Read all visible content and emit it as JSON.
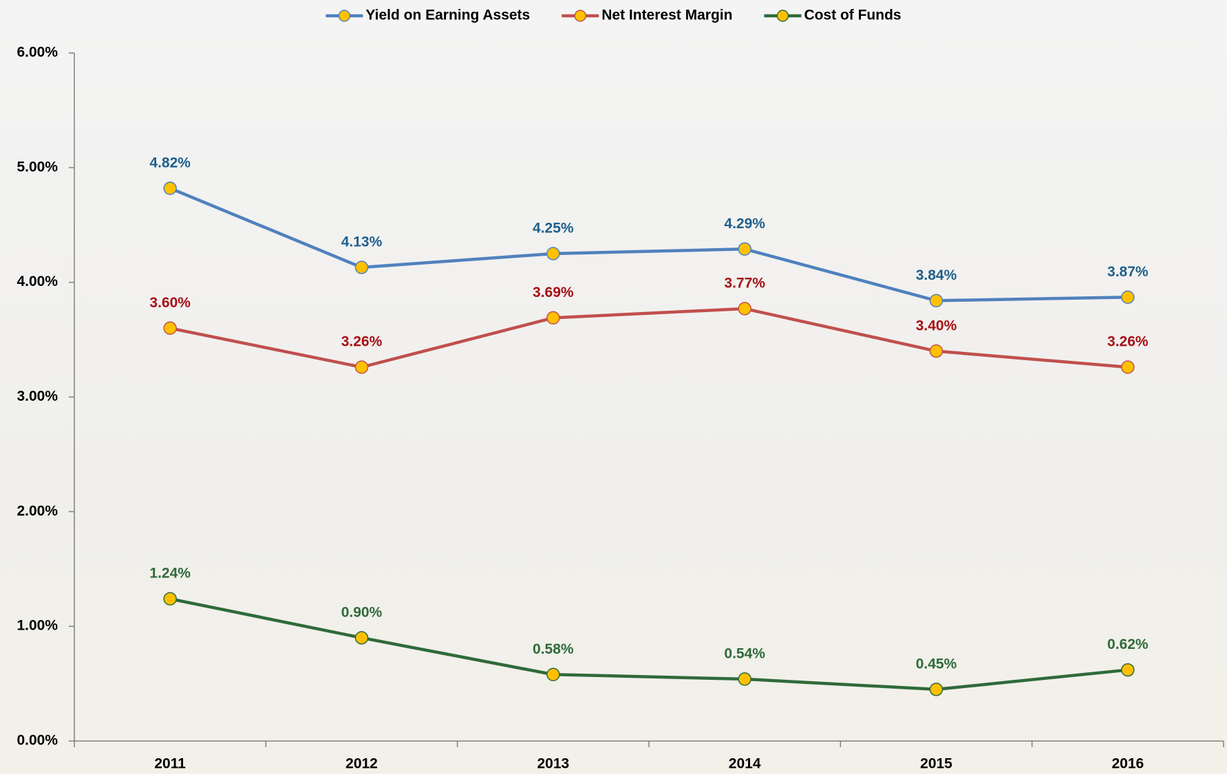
{
  "chart_data": {
    "type": "line",
    "categories": [
      "2011",
      "2012",
      "2013",
      "2014",
      "2015",
      "2016"
    ],
    "series": [
      {
        "name": "Yield on Earning Assets",
        "color": "#4f81bd",
        "label_color": "#1f5f8b",
        "values": [
          4.82,
          4.13,
          4.25,
          4.29,
          3.84,
          3.87
        ],
        "value_labels": [
          "4.82%",
          "4.13%",
          "4.25%",
          "4.29%",
          "3.84%",
          "3.87%"
        ]
      },
      {
        "name": "Net Interest Margin",
        "color": "#c0504d",
        "label_color": "#a50f15",
        "values": [
          3.6,
          3.26,
          3.69,
          3.77,
          3.4,
          3.26
        ],
        "value_labels": [
          "3.60%",
          "3.26%",
          "3.69%",
          "3.77%",
          "3.40%",
          "3.26%"
        ]
      },
      {
        "name": "Cost of Funds",
        "color": "#2f6a3a",
        "label_color": "#2f6a3a",
        "values": [
          1.24,
          0.9,
          0.58,
          0.54,
          0.45,
          0.62
        ],
        "value_labels": [
          "1.24%",
          "0.90%",
          "0.58%",
          "0.54%",
          "0.45%",
          "0.62%"
        ]
      }
    ],
    "marker_color": "#ffc000",
    "ylim": [
      0,
      6
    ],
    "yticks": [
      {
        "value": 0,
        "label": "0.00%"
      },
      {
        "value": 1,
        "label": "1.00%"
      },
      {
        "value": 2,
        "label": "2.00%"
      },
      {
        "value": 3,
        "label": "3.00%"
      },
      {
        "value": 4,
        "label": "4.00%"
      },
      {
        "value": 5,
        "label": "5.00%"
      },
      {
        "value": 6,
        "label": "6.00%"
      }
    ],
    "grid": false,
    "legend": "top"
  }
}
